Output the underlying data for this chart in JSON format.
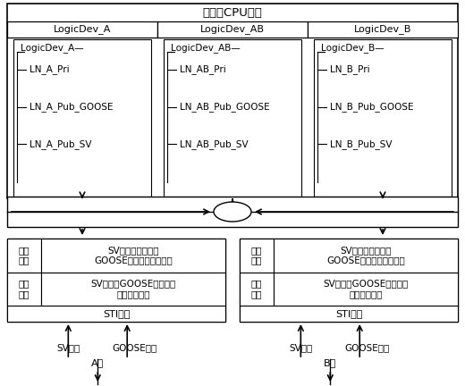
{
  "title": "管理主CPU模块",
  "top_cols": [
    "LogicDev_A",
    "LogicDev_AB",
    "LogicDev_B"
  ],
  "ld_a_header": "LogicDev_A—",
  "ld_a_items": [
    "LN_A_Pri",
    "LN_A_Pub_GOOSE",
    "LN_A_Pub_SV"
  ],
  "ld_ab_header": "LogicDev_AB—",
  "ld_ab_items": [
    "LN_AB_Pri",
    "LN_AB_Pub_GOOSE",
    "LN_AB_Pub_SV"
  ],
  "ld_b_header": "LogicDev_B—",
  "ld_b_items": [
    "LN_B_Pri",
    "LN_B_Pub_GOOSE",
    "LN_B_Pub_SV"
  ],
  "pub_label": "公共\n数据",
  "pub_content": "SV采样输出数据、\nGOOSE开关、位置等信息",
  "pri_label": "私有\n数据",
  "pri_content": "SV状态、GOOSE状态、设\n备告警信号等",
  "sti_left": "STI模块",
  "sti_right": "STI模块",
  "sv_net": "SV网络",
  "goose_net": "GOOSE网络",
  "set_a": "A套",
  "set_b": "B套",
  "plus": "+",
  "bg": "#ffffff",
  "lc": "#000000",
  "tc": "#000000"
}
